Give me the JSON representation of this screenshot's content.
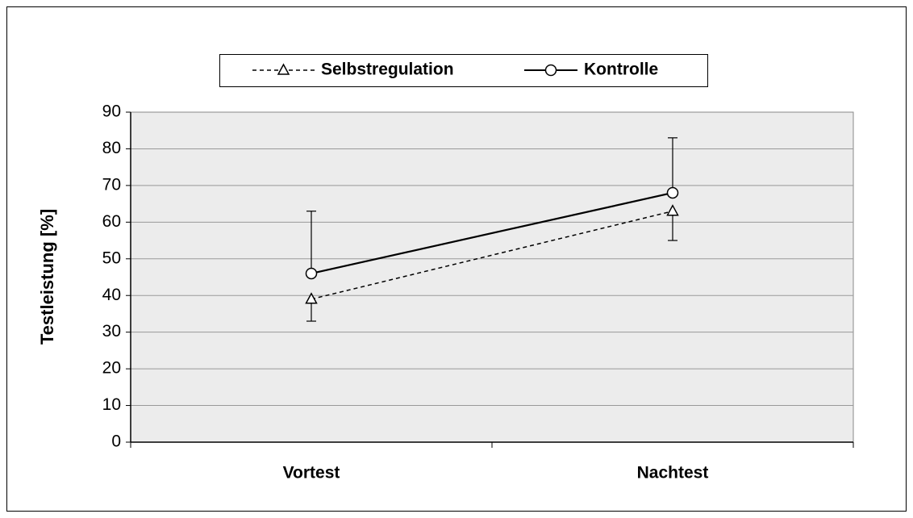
{
  "chart_data": {
    "type": "line",
    "ylabel": "Testleistung [%]",
    "categories": [
      "Vortest",
      "Nachtest"
    ],
    "series": [
      {
        "name": "Selbstregulation",
        "color": "#000000",
        "line_style": "dashed",
        "marker": "triangle",
        "error_direction": "down",
        "values": [
          39,
          63
        ],
        "errors": [
          6,
          8
        ]
      },
      {
        "name": "Kontrolle",
        "color": "#000000",
        "line_style": "solid",
        "marker": "circle",
        "error_direction": "up",
        "values": [
          46,
          68
        ],
        "errors": [
          17,
          15
        ]
      }
    ],
    "ylim": [
      0,
      90
    ],
    "yticks": [
      0,
      10,
      20,
      30,
      40,
      50,
      60,
      70,
      80,
      90
    ],
    "grid": true,
    "legend": "top"
  }
}
